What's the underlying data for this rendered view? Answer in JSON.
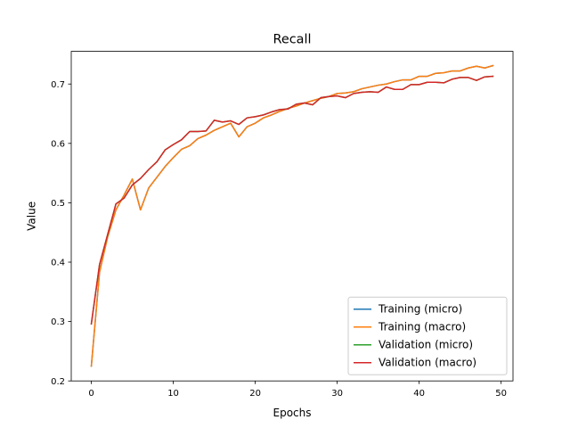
{
  "chart_data": {
    "type": "line",
    "title": "Recall",
    "xlabel": "Epochs",
    "ylabel": "Value",
    "xlim": [
      -2.45,
      51.45
    ],
    "ylim": [
      0.2,
      0.755
    ],
    "xticks": [
      0,
      10,
      20,
      30,
      40,
      50
    ],
    "yticks": [
      0.2,
      0.3,
      0.4,
      0.5,
      0.6,
      0.7
    ],
    "ytick_labels": [
      "0.2",
      "0.3",
      "0.4",
      "0.5",
      "0.6",
      "0.7"
    ],
    "grid": false,
    "legend_position": "lower-right",
    "x": [
      0,
      1,
      2,
      3,
      4,
      5,
      6,
      7,
      8,
      9,
      10,
      11,
      12,
      13,
      14,
      15,
      16,
      17,
      18,
      19,
      20,
      21,
      22,
      23,
      24,
      25,
      26,
      27,
      28,
      29,
      30,
      31,
      32,
      33,
      34,
      35,
      36,
      37,
      38,
      39,
      40,
      41,
      42,
      43,
      44,
      45,
      46,
      47,
      48,
      49
    ],
    "series": [
      {
        "name": "Training (micro)",
        "color": "#1f77b4",
        "values": [
          0.225,
          0.383,
          0.443,
          0.488,
          0.513,
          0.54,
          0.488,
          0.525,
          0.543,
          0.561,
          0.576,
          0.59,
          0.596,
          0.608,
          0.614,
          0.622,
          0.628,
          0.634,
          0.611,
          0.628,
          0.634,
          0.643,
          0.648,
          0.654,
          0.659,
          0.663,
          0.668,
          0.672,
          0.676,
          0.679,
          0.684,
          0.685,
          0.687,
          0.692,
          0.695,
          0.698,
          0.7,
          0.704,
          0.707,
          0.707,
          0.713,
          0.713,
          0.718,
          0.719,
          0.722,
          0.722,
          0.727,
          0.73,
          0.727,
          0.731
        ]
      },
      {
        "name": "Training (macro)",
        "color": "#ff7f0e",
        "values": [
          0.225,
          0.383,
          0.443,
          0.488,
          0.513,
          0.54,
          0.488,
          0.525,
          0.543,
          0.561,
          0.576,
          0.59,
          0.596,
          0.608,
          0.614,
          0.622,
          0.628,
          0.634,
          0.611,
          0.628,
          0.634,
          0.643,
          0.648,
          0.654,
          0.659,
          0.663,
          0.668,
          0.672,
          0.676,
          0.679,
          0.684,
          0.685,
          0.687,
          0.692,
          0.695,
          0.698,
          0.7,
          0.704,
          0.707,
          0.707,
          0.713,
          0.713,
          0.718,
          0.719,
          0.722,
          0.722,
          0.727,
          0.73,
          0.727,
          0.731
        ]
      },
      {
        "name": "Validation (micro)",
        "color": "#2ca02c",
        "values": [
          0.296,
          0.396,
          0.447,
          0.498,
          0.508,
          0.53,
          0.541,
          0.556,
          0.569,
          0.589,
          0.598,
          0.606,
          0.62,
          0.62,
          0.621,
          0.639,
          0.636,
          0.638,
          0.632,
          0.643,
          0.645,
          0.648,
          0.653,
          0.657,
          0.658,
          0.666,
          0.668,
          0.665,
          0.677,
          0.679,
          0.68,
          0.677,
          0.684,
          0.686,
          0.687,
          0.686,
          0.695,
          0.691,
          0.691,
          0.699,
          0.699,
          0.703,
          0.703,
          0.702,
          0.708,
          0.711,
          0.711,
          0.706,
          0.712,
          0.713
        ]
      },
      {
        "name": "Validation (macro)",
        "color": "#d62728",
        "values": [
          0.296,
          0.396,
          0.447,
          0.498,
          0.508,
          0.53,
          0.541,
          0.556,
          0.569,
          0.589,
          0.598,
          0.606,
          0.62,
          0.62,
          0.621,
          0.639,
          0.636,
          0.638,
          0.632,
          0.643,
          0.645,
          0.648,
          0.653,
          0.657,
          0.658,
          0.666,
          0.668,
          0.665,
          0.677,
          0.679,
          0.68,
          0.677,
          0.684,
          0.686,
          0.687,
          0.686,
          0.695,
          0.691,
          0.691,
          0.699,
          0.699,
          0.703,
          0.703,
          0.702,
          0.708,
          0.711,
          0.711,
          0.706,
          0.712,
          0.713
        ]
      }
    ]
  }
}
